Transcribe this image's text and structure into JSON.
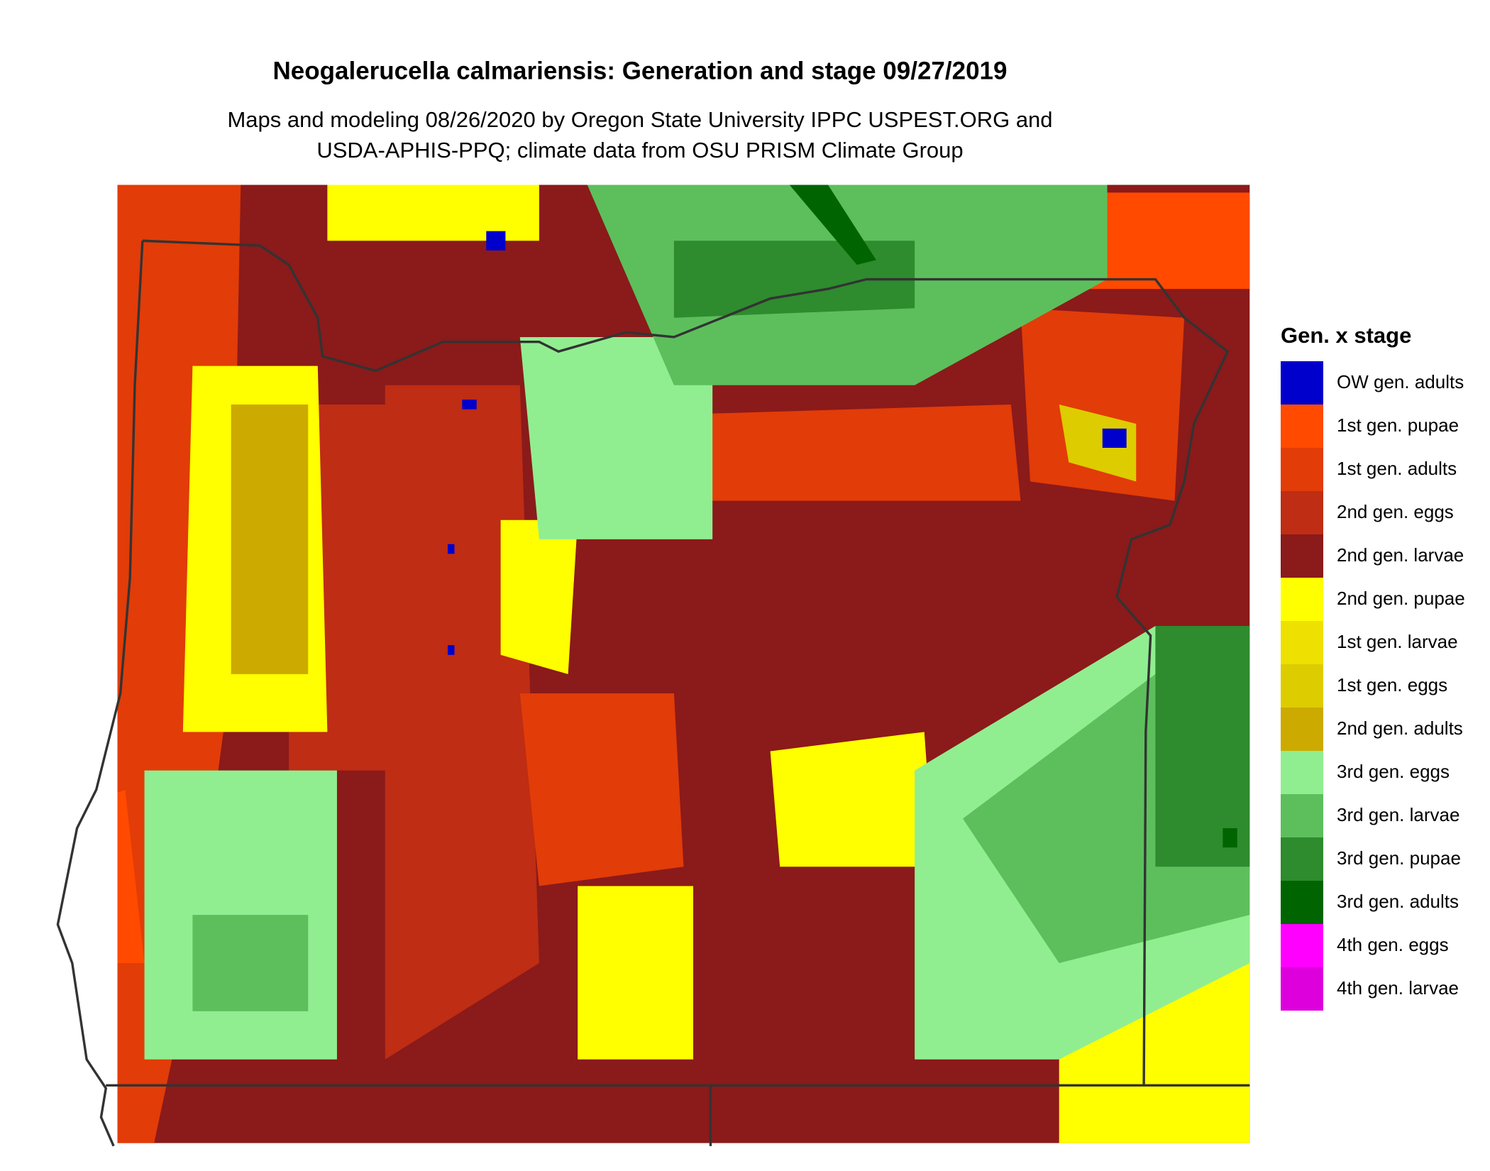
{
  "title": "Neogalerucella calmariensis: Generation and stage 09/27/2019",
  "subtitle": [
    "Maps and modeling 08/26/2020 by Oregon State University IPPC USPEST.ORG and",
    "USDA-APHIS-PPQ; climate data from OSU PRISM Climate Group"
  ],
  "legend": {
    "title": "Gen. x stage",
    "items": [
      {
        "label": "OW gen. adults",
        "color": "#0000cc"
      },
      {
        "label": "1st gen. pupae",
        "color": "#ff4a00"
      },
      {
        "label": "1st gen. adults",
        "color": "#e23c08"
      },
      {
        "label": "2nd gen. eggs",
        "color": "#be2d14"
      },
      {
        "label": "2nd gen. larvae",
        "color": "#8b1a1a"
      },
      {
        "label": "2nd gen. pupae",
        "color": "#ffff00"
      },
      {
        "label": "1st gen. larvae",
        "color": "#eee000"
      },
      {
        "label": "1st gen. eggs",
        "color": "#ddcc00"
      },
      {
        "label": "2nd gen. adults",
        "color": "#ccaa00"
      },
      {
        "label": "3rd gen. eggs",
        "color": "#90ee90"
      },
      {
        "label": "3rd gen. larvae",
        "color": "#5cbf5c"
      },
      {
        "label": "3rd gen. pupae",
        "color": "#2e8b2e"
      },
      {
        "label": "3rd gen. adults",
        "color": "#006400"
      },
      {
        "label": "4th gen. eggs",
        "color": "#ff00ff"
      },
      {
        "label": "4th gen. larvae",
        "color": "#dd00dd"
      }
    ]
  }
}
